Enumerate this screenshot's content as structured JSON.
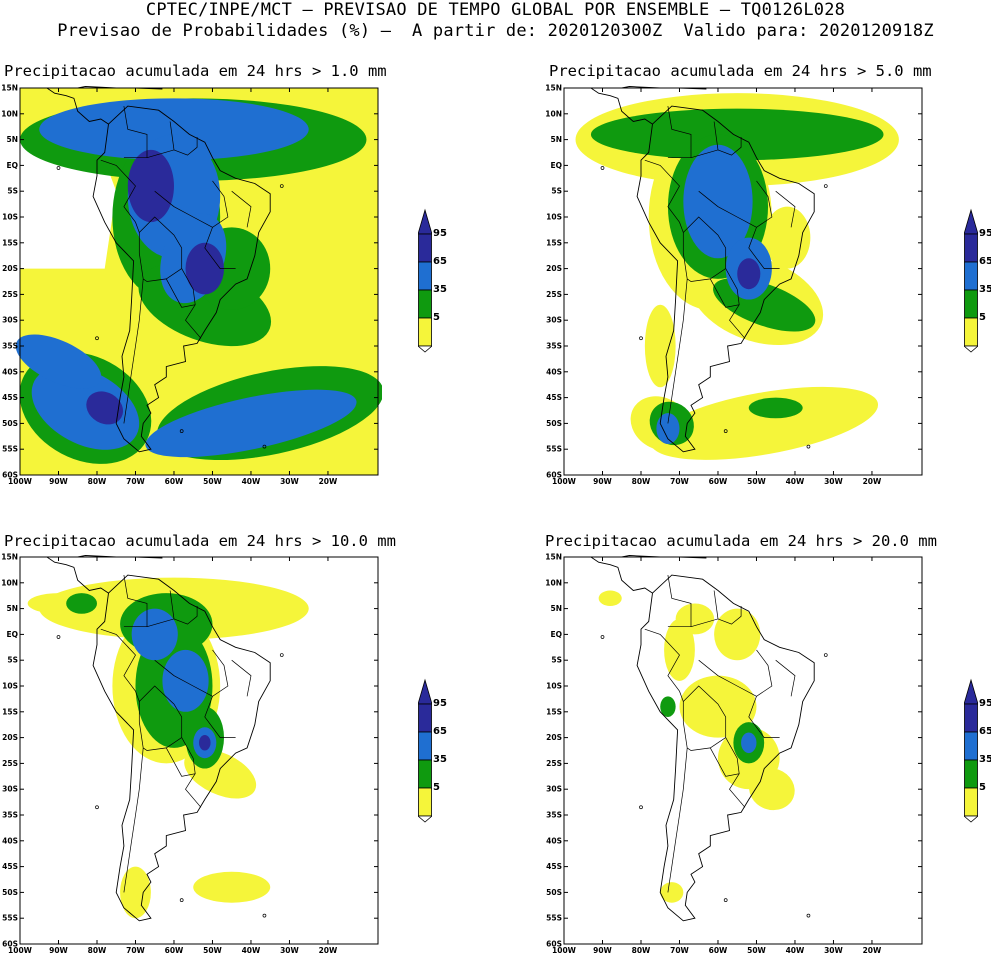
{
  "header": {
    "line1": "CPTEC/INPE/MCT – PREVISAO DE TEMPO GLOBAL POR ENSEMBLE – TQ0126L028",
    "line2": "Previsao de Probabilidades (%) –  A partir de: 2020120300Z  Valido para: 2020120918Z"
  },
  "panels": [
    {
      "title": "Precipitacao acumulada em 24 hrs > 1.0 mm"
    },
    {
      "title": "Precipitacao acumulada em 24 hrs > 5.0 mm"
    },
    {
      "title": "Precipitacao acumulada em 24 hrs > 10.0 mm"
    },
    {
      "title": "Precipitacao acumulada em 24 hrs > 20.0 mm"
    }
  ],
  "lat_labels": [
    "15N",
    "10N",
    "5N",
    "EQ",
    "5S",
    "10S",
    "15S",
    "20S",
    "25S",
    "30S",
    "35S",
    "40S",
    "45S",
    "50S",
    "55S",
    "60S"
  ],
  "lon_labels": [
    "100W",
    "90W",
    "80W",
    "70W",
    "60W",
    "50W",
    "40W",
    "30W",
    "20W"
  ],
  "colorbar": {
    "labels": [
      "95",
      "65",
      "35",
      "5"
    ],
    "colors": {
      "c95": "#2a2a9a",
      "c65": "#1f6fd1",
      "c35": "#0f9a0f",
      "c5": "#f5f53a",
      "cfill": "#ffffff"
    }
  }
}
